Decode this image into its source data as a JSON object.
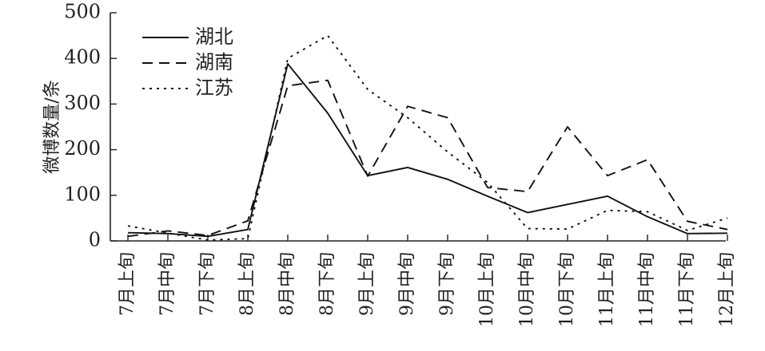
{
  "chart_data": {
    "type": "line",
    "title": "",
    "xlabel": "",
    "ylabel": "微博数量/条",
    "ylim": [
      0,
      500
    ],
    "yticks": [
      0,
      100,
      200,
      300,
      400,
      500
    ],
    "grid": false,
    "legend_position": "top-left",
    "categories": [
      "7月上旬",
      "7月中旬",
      "7月下旬",
      "8月上旬",
      "8月中旬",
      "8月下旬",
      "9月上旬",
      "9月中旬",
      "9月下旬",
      "10月上旬",
      "10月中旬",
      "10月下旬",
      "11月上旬",
      "11月中旬",
      "11月下旬",
      "12月上旬"
    ],
    "series": [
      {
        "name": "湖北",
        "dash": "solid",
        "values": [
          18,
          16,
          10,
          25,
          388,
          280,
          143,
          161,
          135,
          98,
          62,
          80,
          98,
          53,
          16,
          17
        ]
      },
      {
        "name": "湖南",
        "dash": "dashed",
        "values": [
          10,
          22,
          12,
          44,
          340,
          352,
          142,
          295,
          270,
          117,
          108,
          250,
          143,
          178,
          43,
          25
        ]
      },
      {
        "name": "江苏",
        "dash": "dotted",
        "values": [
          33,
          17,
          2,
          5,
          400,
          450,
          332,
          270,
          195,
          128,
          27,
          26,
          67,
          64,
          23,
          50
        ]
      }
    ]
  }
}
